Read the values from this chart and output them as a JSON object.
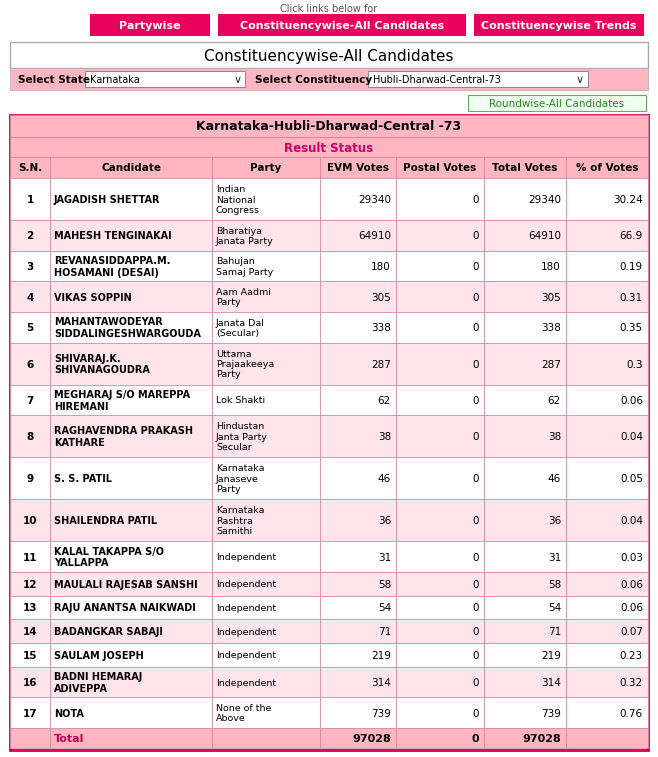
{
  "title_main": "Constituencywise-All Candidates",
  "select_state_label": "Select State",
  "select_state_value": "Karnataka",
  "select_constituency_label": "Select Constituency",
  "select_constituency_value": "Hubli-Dharwad-Central-73",
  "roundwise_btn": "Roundwise-All Candidates",
  "table_title": "Karnataka-Hubli-Dharwad-Central -73",
  "table_subtitle": "Result Status",
  "nav_buttons": [
    "Partywise",
    "Constituencywise-All Candidates",
    "Constituencywise Trends"
  ],
  "col_headers": [
    "S.N.",
    "Candidate",
    "Party",
    "EVM Votes",
    "Postal Votes",
    "Total Votes",
    "% of Votes"
  ],
  "rows": [
    [
      1,
      "JAGADISH SHETTAR",
      "Indian\nNational\nCongress",
      "29340",
      "0",
      "29340",
      "30.24"
    ],
    [
      2,
      "MAHESH TENGINAKAI",
      "Bharatiya\nJanata Party",
      "64910",
      "0",
      "64910",
      "66.9"
    ],
    [
      3,
      "REVANASIDDAPPA.M.\nHOSAMANI (DESAI)",
      "Bahujan\nSamaj Party",
      "180",
      "0",
      "180",
      "0.19"
    ],
    [
      4,
      "VIKAS SOPPIN",
      "Aam Aadmi\nParty",
      "305",
      "0",
      "305",
      "0.31"
    ],
    [
      5,
      "MAHANTAWODEYAR\nSIDDALINGESHWARGOUDA",
      "Janata Dal\n(Secular)",
      "338",
      "0",
      "338",
      "0.35"
    ],
    [
      6,
      "SHIVARAJ.K.\nSHIVANAGOUDRA",
      "Uttama\nPrajaakeeya\nParty",
      "287",
      "0",
      "287",
      "0.3"
    ],
    [
      7,
      "MEGHARAJ S/O MAREPPA\nHIREMANI",
      "Lok Shakti",
      "62",
      "0",
      "62",
      "0.06"
    ],
    [
      8,
      "RAGHAVENDRA PRAKASH\nKATHARE",
      "Hindustan\nJanta Party\nSecular",
      "38",
      "0",
      "38",
      "0.04"
    ],
    [
      9,
      "S. S. PATIL",
      "Karnataka\nJanaseve\nParty",
      "46",
      "0",
      "46",
      "0.05"
    ],
    [
      10,
      "SHAILENDRA PATIL",
      "Karnataka\nRashtra\nSamithi",
      "36",
      "0",
      "36",
      "0.04"
    ],
    [
      11,
      "KALAL TAKAPPA S/O\nYALLAPPA",
      "Independent",
      "31",
      "0",
      "31",
      "0.03"
    ],
    [
      12,
      "MAULALI RAJESAB SANSHI",
      "Independent",
      "58",
      "0",
      "58",
      "0.06"
    ],
    [
      13,
      "RAJU ANANTSA NAIKWADI",
      "Independent",
      "54",
      "0",
      "54",
      "0.06"
    ],
    [
      14,
      "BADANGKAR SABAJI",
      "Independent",
      "71",
      "0",
      "71",
      "0.07"
    ],
    [
      15,
      "SAULAM JOSEPH",
      "Independent",
      "219",
      "0",
      "219",
      "0.23"
    ],
    [
      16,
      "BADNI HEMARAJ\nADIVEPPA",
      "Independent",
      "314",
      "0",
      "314",
      "0.32"
    ],
    [
      17,
      "NOTA",
      "None of the\nAbove",
      "739",
      "0",
      "739",
      "0.76"
    ]
  ],
  "total_evm": "97028",
  "total_postal": "0",
  "total_votes": "97028",
  "nav_bg": "#e8005a",
  "nav_text": "#ffffff",
  "header_bg": "#ffb6c1",
  "col_header_bg": "#ffb6c1",
  "row_even_bg": "#ffffff",
  "row_odd_bg": "#ffe4ec",
  "total_row_bg": "#ffb6c1",
  "table_border_color": "#d4849a",
  "outer_border_color": "#cc0055",
  "select_bg": "#ffb6c1",
  "roundwise_bg": "#f0fff0",
  "roundwise_border": "#66aa66",
  "roundwise_text": "#228822",
  "page_bg": "#ffffff"
}
